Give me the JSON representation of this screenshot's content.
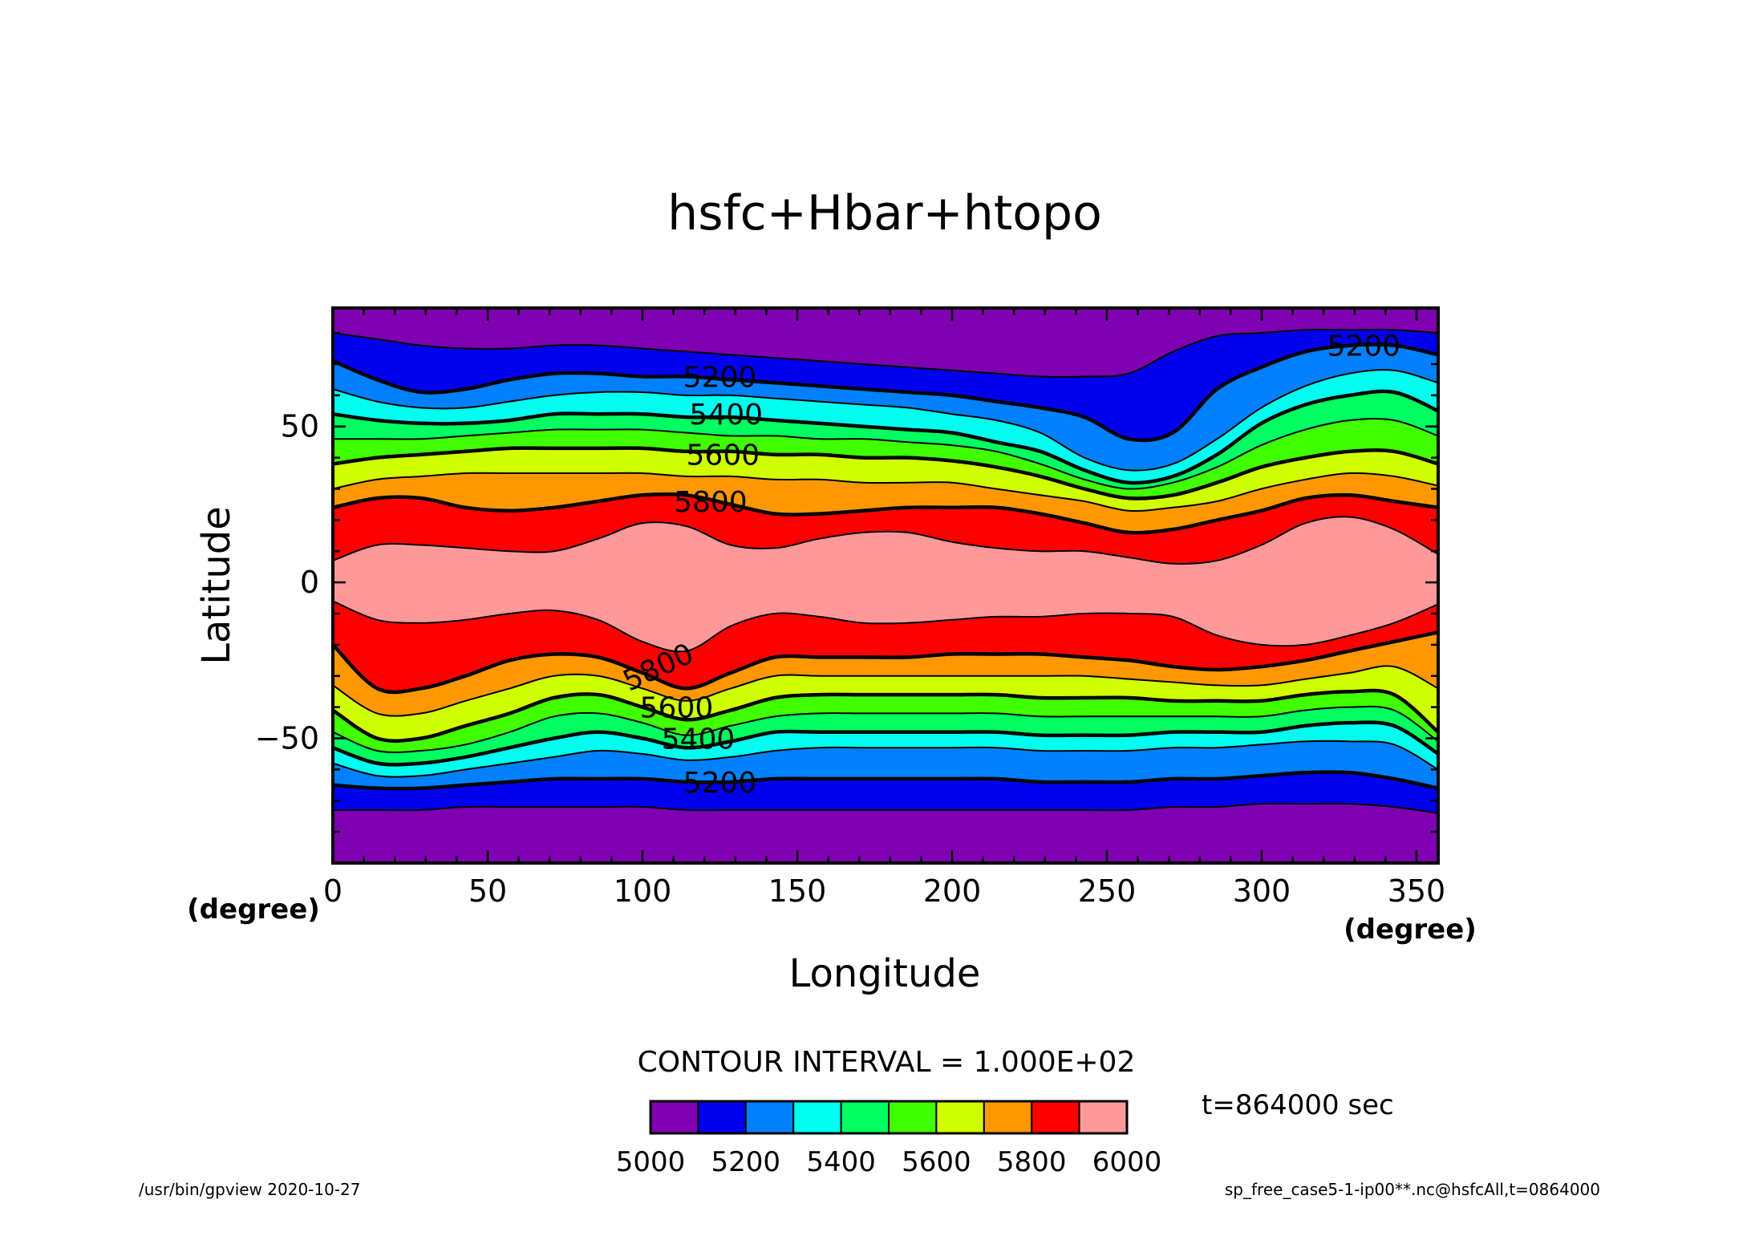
{
  "chart_data": {
    "type": "contour",
    "title": "hsfc+Hbar+htopo",
    "xlabel": "Longitude",
    "ylabel": "Latitude",
    "x_unit": "(degree)",
    "y_unit": "(degree)",
    "xlim": [
      0,
      357
    ],
    "ylim": [
      -90,
      88
    ],
    "x_ticks": [
      0,
      50,
      100,
      150,
      200,
      250,
      300,
      350
    ],
    "x_tick_labels": [
      "0",
      "50",
      "100",
      "150",
      "200",
      "250",
      "300",
      "350"
    ],
    "y_ticks": [
      -50,
      0,
      50
    ],
    "y_tick_labels": [
      "−50",
      "0",
      "50"
    ],
    "contour_interval_text": "CONTOUR INTERVAL = 1.000E+02",
    "time_text": "t=864000 sec",
    "levels": [
      5100,
      5200,
      5300,
      5400,
      5500,
      5600,
      5700,
      5800,
      5900
    ],
    "bold_levels": [
      5200,
      5400,
      5600,
      5800
    ],
    "contour_labels": [
      {
        "text": "5200",
        "x": 125,
        "y": 66
      },
      {
        "text": "5400",
        "x": 127,
        "y": 54
      },
      {
        "text": "5600",
        "x": 126,
        "y": 41
      },
      {
        "text": "5800",
        "x": 122,
        "y": 26
      },
      {
        "text": "5200",
        "x": 333,
        "y": 76
      },
      {
        "text": "5800",
        "x": 105,
        "y": -27
      },
      {
        "text": "5600",
        "x": 111,
        "y": -40
      },
      {
        "text": "5400",
        "x": 118,
        "y": -50
      },
      {
        "text": "5200",
        "x": 125,
        "y": -64
      }
    ],
    "colorbar": {
      "colors": [
        "#7f00b0",
        "#0000ee",
        "#0080ff",
        "#00ffee",
        "#00ff60",
        "#40ff00",
        "#d0ff00",
        "#ff9800",
        "#ff0000",
        "#ff9999"
      ],
      "labels": [
        "5000",
        "5200",
        "5400",
        "5600",
        "5800",
        "6000"
      ]
    },
    "field_colors": {
      "below_5100": "#7f00b0",
      "5100_5200": "#0000ee",
      "5200_5300": "#0080ff",
      "5300_5400": "#00ffee",
      "5400_5500": "#00ff60",
      "5500_5600": "#40ff00",
      "5600_5700": "#d0ff00",
      "5700_5800": "#ff9800",
      "5800_5900": "#ff0000",
      "above_5900": "#ff9999"
    },
    "north_contours": [
      {
        "level": 5100,
        "lat": [
          80,
          78,
          76,
          75,
          75,
          76,
          76,
          75,
          74,
          73,
          72,
          71,
          70,
          69,
          68,
          67,
          66,
          66,
          67,
          74,
          79,
          80,
          81,
          81,
          81,
          80
        ]
      },
      {
        "level": 5200,
        "lat": [
          71,
          65,
          61,
          62,
          65,
          67,
          67,
          66,
          66,
          65,
          64,
          63,
          62,
          61,
          60,
          58,
          56,
          53,
          46,
          48,
          62,
          69,
          74,
          76,
          76,
          73
        ]
      },
      {
        "level": 5300,
        "lat": [
          62,
          58,
          56,
          56,
          58,
          60,
          61,
          61,
          60,
          60,
          59,
          58,
          57,
          56,
          54,
          52,
          48,
          40,
          36,
          38,
          46,
          56,
          63,
          67,
          68,
          64
        ]
      },
      {
        "level": 5400,
        "lat": [
          54,
          52,
          51,
          51,
          52,
          54,
          54,
          54,
          53,
          53,
          52,
          51,
          50,
          49,
          48,
          45,
          42,
          36,
          32,
          34,
          41,
          51,
          57,
          60,
          61,
          55
        ]
      },
      {
        "level": 5500,
        "lat": [
          46,
          46,
          46,
          47,
          48,
          49,
          49,
          49,
          48,
          47,
          47,
          46,
          46,
          45,
          44,
          42,
          38,
          33,
          30,
          32,
          37,
          44,
          49,
          52,
          52,
          47
        ]
      },
      {
        "level": 5600,
        "lat": [
          38,
          40,
          41,
          42,
          43,
          43,
          43,
          43,
          42,
          42,
          41,
          41,
          40,
          40,
          39,
          37,
          34,
          30,
          27,
          28,
          32,
          37,
          40,
          42,
          42,
          38
        ]
      },
      {
        "level": 5700,
        "lat": [
          30,
          33,
          34,
          35,
          35,
          35,
          35,
          35,
          34,
          34,
          33,
          33,
          32,
          32,
          32,
          30,
          28,
          26,
          23,
          24,
          26,
          30,
          33,
          35,
          34,
          31
        ]
      },
      {
        "level": 5800,
        "lat": [
          24,
          27,
          27,
          24,
          23,
          24,
          26,
          28,
          28,
          25,
          22,
          22,
          23,
          24,
          24,
          24,
          22,
          19,
          16,
          17,
          20,
          23,
          27,
          28,
          26,
          24
        ]
      },
      {
        "level": 5900,
        "lat": [
          7,
          12,
          12,
          11,
          10,
          10,
          14,
          19,
          18,
          12,
          11,
          14,
          16,
          16,
          13,
          11,
          10,
          10,
          8,
          6,
          7,
          12,
          19,
          21,
          17,
          9
        ]
      }
    ],
    "south_contours": [
      {
        "level": 5900,
        "lat": [
          -6,
          -12,
          -13,
          -12,
          -10,
          -9,
          -12,
          -19,
          -22,
          -14,
          -10,
          -11,
          -13,
          -13,
          -12,
          -11,
          -11,
          -10,
          -10,
          -11,
          -17,
          -20,
          -20,
          -17,
          -13,
          -7
        ]
      },
      {
        "level": 5800,
        "lat": [
          -20,
          -34,
          -34,
          -30,
          -25,
          -23,
          -24,
          -29,
          -34,
          -29,
          -24,
          -24,
          -24,
          -24,
          -23,
          -23,
          -23,
          -24,
          -25,
          -27,
          -28,
          -27,
          -25,
          -22,
          -19,
          -16
        ]
      },
      {
        "level": 5700,
        "lat": [
          -33,
          -42,
          -42,
          -38,
          -34,
          -30,
          -30,
          -34,
          -38,
          -34,
          -30,
          -30,
          -30,
          -30,
          -30,
          -30,
          -30,
          -30,
          -31,
          -32,
          -33,
          -33,
          -31,
          -29,
          -27,
          -34
        ]
      },
      {
        "level": 5600,
        "lat": [
          -41,
          -50,
          -50,
          -46,
          -42,
          -37,
          -36,
          -40,
          -44,
          -41,
          -37,
          -36,
          -36,
          -36,
          -36,
          -36,
          -37,
          -37,
          -37,
          -38,
          -38,
          -38,
          -36,
          -35,
          -36,
          -48
        ]
      },
      {
        "level": 5500,
        "lat": [
          -48,
          -54,
          -54,
          -52,
          -48,
          -43,
          -42,
          -45,
          -49,
          -46,
          -43,
          -42,
          -42,
          -42,
          -42,
          -42,
          -43,
          -43,
          -43,
          -43,
          -43,
          -43,
          -41,
          -40,
          -41,
          -51
        ]
      },
      {
        "level": 5400,
        "lat": [
          -53,
          -58,
          -58,
          -56,
          -53,
          -50,
          -48,
          -50,
          -53,
          -51,
          -48,
          -48,
          -48,
          -48,
          -48,
          -48,
          -49,
          -49,
          -49,
          -48,
          -48,
          -48,
          -46,
          -45,
          -46,
          -55
        ]
      },
      {
        "level": 5300,
        "lat": [
          -58,
          -62,
          -62,
          -60,
          -58,
          -56,
          -54,
          -55,
          -57,
          -56,
          -54,
          -53,
          -53,
          -53,
          -53,
          -53,
          -54,
          -54,
          -54,
          -53,
          -53,
          -52,
          -51,
          -51,
          -52,
          -60
        ]
      },
      {
        "level": 5200,
        "lat": [
          -65,
          -66,
          -66,
          -65,
          -64,
          -63,
          -63,
          -63,
          -64,
          -64,
          -63,
          -63,
          -63,
          -63,
          -63,
          -63,
          -64,
          -64,
          -64,
          -63,
          -63,
          -62,
          -61,
          -61,
          -63,
          -66
        ]
      },
      {
        "level": 5100,
        "lat": [
          -73,
          -73,
          -73,
          -72,
          -72,
          -72,
          -72,
          -72,
          -73,
          -73,
          -73,
          -73,
          -73,
          -73,
          -73,
          -73,
          -73,
          -73,
          -73,
          -72,
          -72,
          -71,
          -71,
          -71,
          -72,
          -74
        ]
      }
    ]
  },
  "footer": {
    "left": "/usr/bin/gpview   2020-10-27",
    "right": "sp_free_case5-1-ip00**.nc@hsfcAll,t=0864000"
  }
}
